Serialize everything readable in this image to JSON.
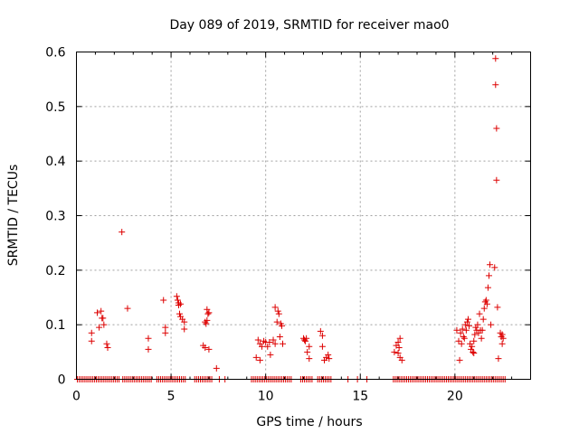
{
  "chart_data": {
    "type": "scatter",
    "title": "Day 089 of 2019, SRMTID for receiver mao0",
    "xlabel": "GPS time / hours",
    "ylabel": "SRMTID / TECUs",
    "xlim": [
      0,
      24
    ],
    "ylim": [
      0,
      0.6
    ],
    "xticks": [
      "0",
      "5",
      "10",
      "15",
      "20"
    ],
    "yticks": [
      "0",
      "0.1",
      "0.2",
      "0.3",
      "0.4",
      "0.5",
      "0.6"
    ],
    "grid": true,
    "legend": "none",
    "marker": "+",
    "color": "#dd0000",
    "series": [
      {
        "points": [
          [
            0.8,
            0.085
          ],
          [
            0.8,
            0.07
          ],
          [
            1.1,
            0.122
          ],
          [
            1.2,
            0.095
          ],
          [
            1.3,
            0.125
          ],
          [
            1.35,
            0.112
          ],
          [
            1.4,
            0.112
          ],
          [
            1.45,
            0.1
          ],
          [
            1.6,
            0.065
          ],
          [
            1.65,
            0.058
          ],
          [
            2.4,
            0.27
          ],
          [
            2.7,
            0.13
          ],
          [
            3.8,
            0.075
          ],
          [
            3.8,
            0.055
          ],
          [
            4.6,
            0.145
          ],
          [
            4.7,
            0.095
          ],
          [
            4.7,
            0.085
          ],
          [
            5.3,
            0.152
          ],
          [
            5.35,
            0.145
          ],
          [
            5.4,
            0.14
          ],
          [
            5.4,
            0.136
          ],
          [
            5.45,
            0.12
          ],
          [
            5.5,
            0.138
          ],
          [
            5.5,
            0.115
          ],
          [
            5.6,
            0.11
          ],
          [
            5.7,
            0.105
          ],
          [
            5.7,
            0.092
          ],
          [
            6.7,
            0.062
          ],
          [
            6.8,
            0.058
          ],
          [
            6.8,
            0.105
          ],
          [
            6.85,
            0.102
          ],
          [
            6.9,
            0.128
          ],
          [
            6.9,
            0.108
          ],
          [
            6.95,
            0.12
          ],
          [
            7.0,
            0.122
          ],
          [
            7.0,
            0.055
          ],
          [
            7.4,
            0.02
          ],
          [
            9.5,
            0.04
          ],
          [
            9.6,
            0.072
          ],
          [
            9.7,
            0.065
          ],
          [
            9.7,
            0.035
          ],
          [
            9.8,
            0.06
          ],
          [
            9.9,
            0.07
          ],
          [
            10.0,
            0.068
          ],
          [
            10.1,
            0.06
          ],
          [
            10.2,
            0.068
          ],
          [
            10.25,
            0.045
          ],
          [
            10.4,
            0.072
          ],
          [
            10.5,
            0.065
          ],
          [
            10.5,
            0.132
          ],
          [
            10.6,
            0.105
          ],
          [
            10.65,
            0.125
          ],
          [
            10.7,
            0.12
          ],
          [
            10.75,
            0.078
          ],
          [
            10.8,
            0.102
          ],
          [
            10.85,
            0.098
          ],
          [
            10.9,
            0.065
          ],
          [
            12.0,
            0.075
          ],
          [
            12.05,
            0.072
          ],
          [
            12.1,
            0.07
          ],
          [
            12.15,
            0.075
          ],
          [
            12.2,
            0.05
          ],
          [
            12.3,
            0.06
          ],
          [
            12.3,
            0.038
          ],
          [
            12.9,
            0.088
          ],
          [
            13.0,
            0.08
          ],
          [
            13.0,
            0.06
          ],
          [
            13.1,
            0.035
          ],
          [
            13.2,
            0.04
          ],
          [
            13.3,
            0.045
          ],
          [
            13.35,
            0.038
          ],
          [
            16.8,
            0.05
          ],
          [
            16.9,
            0.062
          ],
          [
            17.0,
            0.068
          ],
          [
            17.0,
            0.048
          ],
          [
            17.05,
            0.058
          ],
          [
            17.1,
            0.075
          ],
          [
            17.1,
            0.04
          ],
          [
            17.2,
            0.035
          ],
          [
            20.1,
            0.09
          ],
          [
            20.2,
            0.07
          ],
          [
            20.25,
            0.035
          ],
          [
            20.3,
            0.085
          ],
          [
            20.35,
            0.065
          ],
          [
            20.4,
            0.092
          ],
          [
            20.45,
            0.078
          ],
          [
            20.5,
            0.075
          ],
          [
            20.55,
            0.1
          ],
          [
            20.6,
            0.09
          ],
          [
            20.65,
            0.105
          ],
          [
            20.7,
            0.11
          ],
          [
            20.75,
            0.098
          ],
          [
            20.8,
            0.065
          ],
          [
            20.85,
            0.055
          ],
          [
            20.9,
            0.06
          ],
          [
            20.95,
            0.05
          ],
          [
            21.0,
            0.07
          ],
          [
            21.0,
            0.048
          ],
          [
            21.05,
            0.082
          ],
          [
            21.1,
            0.095
          ],
          [
            21.15,
            0.09
          ],
          [
            21.2,
            0.1
          ],
          [
            21.25,
            0.085
          ],
          [
            21.3,
            0.12
          ],
          [
            21.35,
            0.09
          ],
          [
            21.4,
            0.075
          ],
          [
            21.45,
            0.09
          ],
          [
            21.5,
            0.11
          ],
          [
            21.55,
            0.13
          ],
          [
            21.6,
            0.142
          ],
          [
            21.65,
            0.145
          ],
          [
            21.7,
            0.138
          ],
          [
            21.75,
            0.168
          ],
          [
            21.8,
            0.19
          ],
          [
            21.85,
            0.21
          ],
          [
            21.9,
            0.1
          ],
          [
            22.1,
            0.205
          ],
          [
            22.15,
            0.588
          ],
          [
            22.15,
            0.54
          ],
          [
            22.2,
            0.46
          ],
          [
            22.2,
            0.365
          ],
          [
            22.25,
            0.132
          ],
          [
            22.3,
            0.038
          ],
          [
            22.4,
            0.085
          ],
          [
            22.45,
            0.078
          ],
          [
            22.5,
            0.082
          ],
          [
            22.5,
            0.065
          ],
          [
            22.55,
            0.075
          ]
        ],
        "zero_x": [
          0.05,
          0.15,
          0.25,
          0.35,
          0.45,
          0.55,
          0.65,
          0.75,
          0.85,
          0.95,
          1.05,
          1.15,
          1.25,
          1.35,
          1.45,
          1.55,
          1.65,
          1.75,
          1.85,
          1.95,
          2.05,
          2.15,
          2.25,
          2.45,
          2.55,
          2.65,
          2.75,
          2.85,
          2.95,
          3.05,
          3.15,
          3.25,
          3.35,
          3.45,
          3.55,
          3.65,
          3.75,
          3.85,
          3.95,
          4.25,
          4.35,
          4.45,
          4.55,
          4.65,
          4.75,
          4.85,
          4.95,
          5.05,
          5.15,
          5.25,
          5.35,
          5.45,
          5.55,
          5.65,
          5.75,
          6.25,
          6.35,
          6.45,
          6.55,
          6.65,
          6.75,
          6.85,
          6.95,
          7.05,
          7.15,
          7.55,
          7.85,
          9.25,
          9.35,
          9.45,
          9.55,
          9.65,
          9.75,
          9.85,
          9.95,
          10.05,
          10.15,
          10.25,
          10.35,
          10.45,
          10.55,
          10.65,
          10.75,
          10.85,
          10.95,
          11.05,
          11.15,
          11.25,
          11.35,
          11.85,
          11.95,
          12.05,
          12.15,
          12.25,
          12.35,
          12.45,
          12.75,
          12.85,
          12.95,
          13.05,
          13.15,
          13.25,
          13.35,
          13.45,
          14.35,
          14.85,
          15.35,
          16.75,
          16.85,
          16.95,
          17.05,
          17.15,
          17.25,
          17.35,
          17.45,
          17.55,
          17.65,
          17.75,
          17.85,
          17.95,
          18.05,
          18.15,
          18.25,
          18.35,
          18.45,
          18.55,
          18.65,
          18.75,
          18.85,
          18.95,
          19.05,
          19.15,
          19.25,
          19.35,
          19.45,
          19.55,
          19.65,
          19.75,
          19.85,
          19.95,
          20.05,
          20.15,
          20.25,
          20.35,
          20.45,
          20.55,
          20.65,
          20.75,
          20.85,
          20.95,
          21.05,
          21.15,
          21.25,
          21.35,
          21.45,
          21.55,
          21.65,
          21.75,
          21.85,
          21.95,
          22.05,
          22.15,
          22.25,
          22.35,
          22.45,
          22.55,
          22.65
        ]
      }
    ]
  }
}
